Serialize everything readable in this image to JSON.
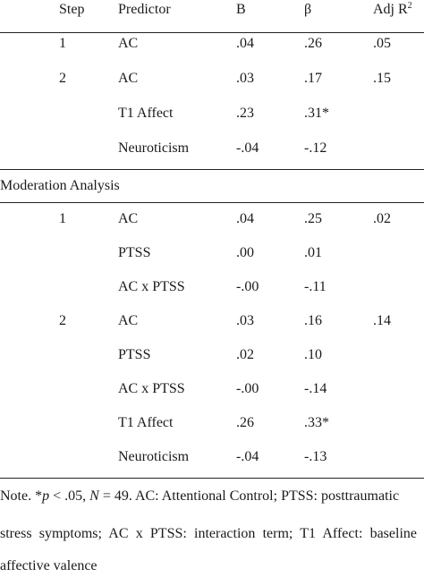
{
  "header": {
    "step": "Step",
    "predictor": "Predictor",
    "b": "B",
    "beta": "β",
    "adj_r2_base": "Adj R",
    "adj_r2_sup": "2"
  },
  "main_rows": [
    {
      "step": "1",
      "predictor": "AC",
      "b": ".04",
      "beta": ".26",
      "adj": ".05"
    },
    {
      "step": "2",
      "predictor": "AC",
      "b": ".03",
      "beta": ".17",
      "adj": ".15"
    },
    {
      "step": "",
      "predictor": "T1 Affect",
      "b": ".23",
      "beta": ".31*",
      "adj": ""
    },
    {
      "step": "",
      "predictor": "Neuroticism",
      "b": "-.04",
      "beta": "-.12",
      "adj": ""
    }
  ],
  "moderation_title": "Moderation Analysis",
  "moderation_rows": [
    {
      "step": "1",
      "predictor": "AC",
      "b": ".04",
      "beta": ".25",
      "adj": ".02"
    },
    {
      "step": "",
      "predictor": "PTSS",
      "b": ".00",
      "beta": ".01",
      "adj": ""
    },
    {
      "step": "",
      "predictor": "AC x PTSS",
      "b": "-.00",
      "beta": "-.11",
      "adj": ""
    },
    {
      "step": "2",
      "predictor": "AC",
      "b": ".03",
      "beta": ".16",
      "adj": ".14"
    },
    {
      "step": "",
      "predictor": "PTSS",
      "b": ".02",
      "beta": ".10",
      "adj": ""
    },
    {
      "step": "",
      "predictor": "AC x PTSS",
      "b": "-.00",
      "beta": "-.14",
      "adj": ""
    },
    {
      "step": "",
      "predictor": "T1 Affect",
      "b": ".26",
      "beta": ".33*",
      "adj": ""
    },
    {
      "step": "",
      "predictor": "Neuroticism",
      "b": "-.04",
      "beta": "-.13",
      "adj": ""
    }
  ],
  "note": {
    "prefix": "Note. *",
    "p": "p",
    "p_rest": " < .05, ",
    "n": "N",
    "n_rest": " = 49. AC: Attentional Control; PTSS: posttraumatic",
    "line2": "stress symptoms; AC x PTSS: interaction term; T1 Affect: baseline",
    "line3": "affective valence"
  }
}
